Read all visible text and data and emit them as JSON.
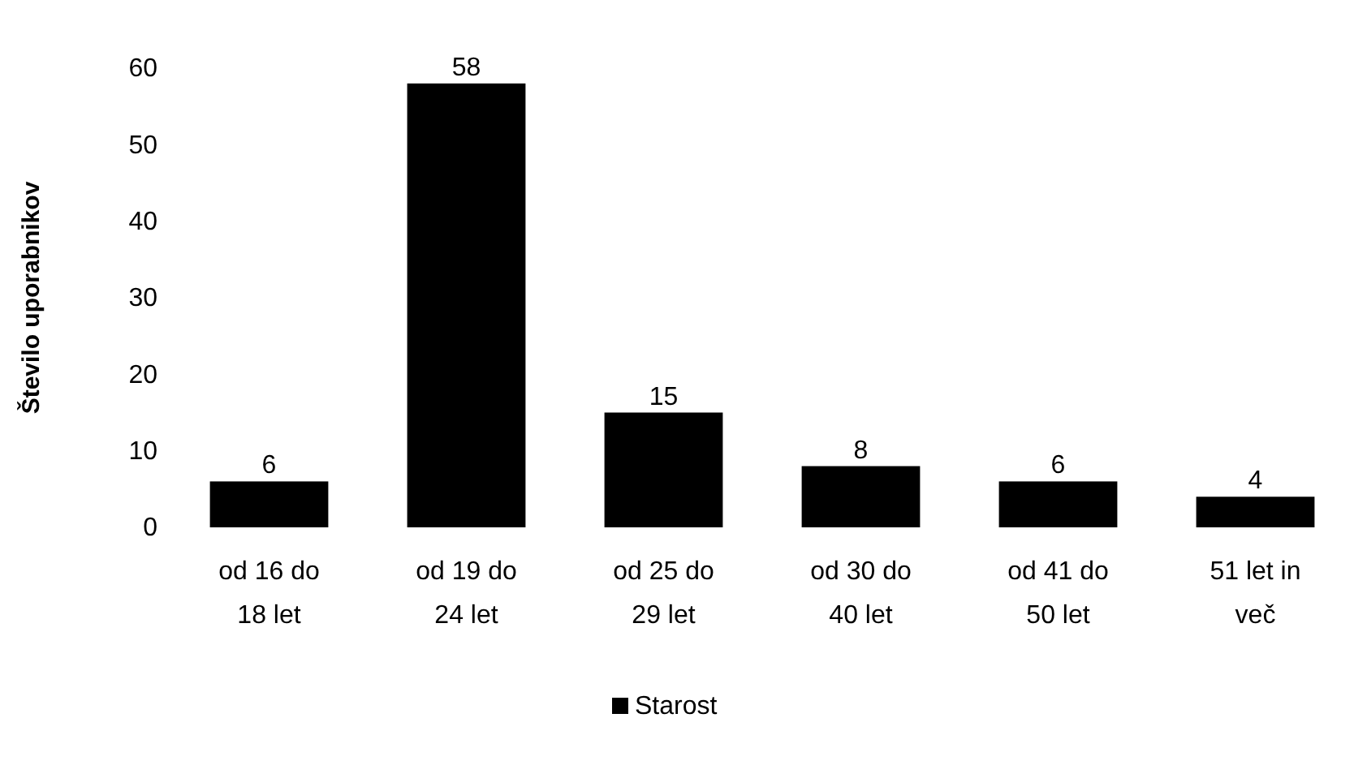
{
  "chart_data": {
    "type": "bar",
    "ylabel": "Število uporabnikov",
    "categories": [
      "od 16 do 18 let",
      "od 19 do 24 let",
      "od 25 do 29 let",
      "od 30 do 40 let",
      "od 41 do 50 let",
      "51 let in več"
    ],
    "series": [
      {
        "name": "Starost",
        "color": "#000000",
        "values": [
          6,
          58,
          15,
          8,
          6,
          4
        ]
      }
    ],
    "ylim": [
      0,
      60
    ],
    "yticks": [
      0,
      10,
      20,
      30,
      40,
      50,
      60
    ],
    "data_labels": true,
    "legend": "bottom",
    "grid": false
  }
}
